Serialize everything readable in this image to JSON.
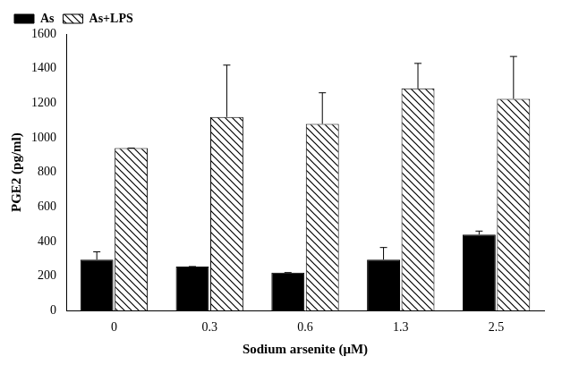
{
  "chart_data": {
    "type": "bar",
    "x_label": "Sodium arsenite (μM)",
    "y_label": "PGE2 (pg/ml)",
    "categories": [
      "0",
      "0.3",
      "0.6",
      "1.3",
      "2.5"
    ],
    "series": [
      {
        "name": "As",
        "color": "#000000",
        "values": [
          295,
          255,
          220,
          295,
          440
        ],
        "errors": [
          45,
          0,
          0,
          70,
          20
        ]
      },
      {
        "name": "As+LPS",
        "color": "#000000",
        "values": [
          940,
          1120,
          1080,
          1285,
          1225
        ],
        "errors": [
          0,
          300,
          180,
          145,
          245
        ]
      }
    ],
    "ylim": [
      0,
      1600
    ],
    "yticks": [
      0,
      200,
      400,
      600,
      800,
      1000,
      1200,
      1400,
      1600
    ],
    "grid": false,
    "legend": "upper left"
  }
}
